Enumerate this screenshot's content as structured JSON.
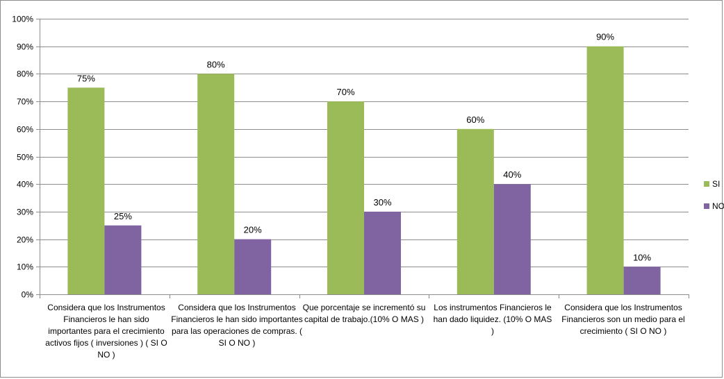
{
  "chart_data": {
    "type": "bar",
    "categories": [
      "Considera que los Instrumentos Financieros le han sido importantes para el crecimiento activos fijos ( inversiones ) ( SI O NO )",
      "Considera que los Instrumentos Financieros le han sido importantes para las operaciones de compras. ( SI O NO )",
      "Que porcentaje se incrementó su capital de trabajo.(10% O MAS )",
      "Los instrumentos Financieros le han dado liquidez. (10% O MAS )",
      "Considera que los Instrumentos Financieros son un medio para el crecimiento ( SI O NO )"
    ],
    "series": [
      {
        "name": "SI",
        "color": "#9bbb59",
        "values": [
          75,
          80,
          70,
          60,
          90
        ],
        "labels": [
          "75%",
          "80%",
          "70%",
          "60%",
          "90%"
        ]
      },
      {
        "name": "NO",
        "color": "#8064a2",
        "values": [
          25,
          20,
          30,
          40,
          10
        ],
        "labels": [
          "25%",
          "20%",
          "30%",
          "40%",
          "10%"
        ]
      }
    ],
    "ylim": [
      0,
      100
    ],
    "yticks": [
      "0%",
      "10%",
      "20%",
      "30%",
      "40%",
      "50%",
      "60%",
      "70%",
      "80%",
      "90%",
      "100%"
    ],
    "grid": true,
    "legend_position": "right",
    "title": "",
    "xlabel": "",
    "ylabel": ""
  }
}
